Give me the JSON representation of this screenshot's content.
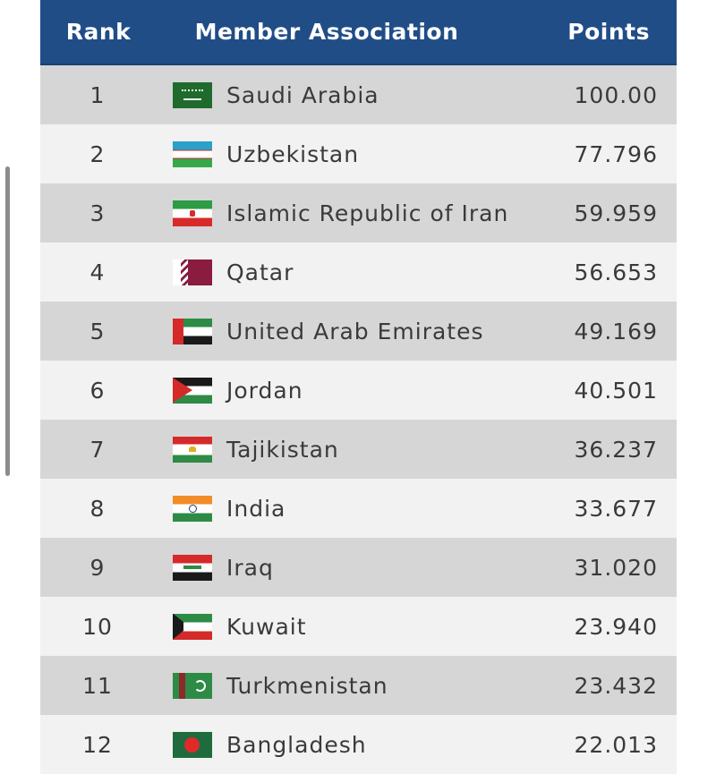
{
  "header": {
    "rank": "Rank",
    "association": "Member Association",
    "points": "Points"
  },
  "rows": [
    {
      "rank": "1",
      "name": "Saudi Arabia",
      "points": "100.00",
      "flag": "saudi-arabia-flag"
    },
    {
      "rank": "2",
      "name": "Uzbekistan",
      "points": "77.796",
      "flag": "uzbekistan-flag"
    },
    {
      "rank": "3",
      "name": "Islamic Republic of Iran",
      "points": "59.959",
      "flag": "iran-flag"
    },
    {
      "rank": "4",
      "name": "Qatar",
      "points": "56.653",
      "flag": "qatar-flag"
    },
    {
      "rank": "5",
      "name": "United Arab Emirates",
      "points": "49.169",
      "flag": "uae-flag"
    },
    {
      "rank": "6",
      "name": "Jordan",
      "points": "40.501",
      "flag": "jordan-flag"
    },
    {
      "rank": "7",
      "name": "Tajikistan",
      "points": "36.237",
      "flag": "tajikistan-flag"
    },
    {
      "rank": "8",
      "name": "India",
      "points": "33.677",
      "flag": "india-flag"
    },
    {
      "rank": "9",
      "name": "Iraq",
      "points": "31.020",
      "flag": "iraq-flag"
    },
    {
      "rank": "10",
      "name": "Kuwait",
      "points": "23.940",
      "flag": "kuwait-flag"
    },
    {
      "rank": "11",
      "name": "Turkmenistan",
      "points": "23.432",
      "flag": "turkmenistan-flag"
    },
    {
      "rank": "12",
      "name": "Bangladesh",
      "points": "22.013",
      "flag": "bangladesh-flag"
    }
  ],
  "colors": {
    "header_bg": "#214d87",
    "row_odd": "#d6d6d6",
    "row_even": "#f2f2f2"
  }
}
